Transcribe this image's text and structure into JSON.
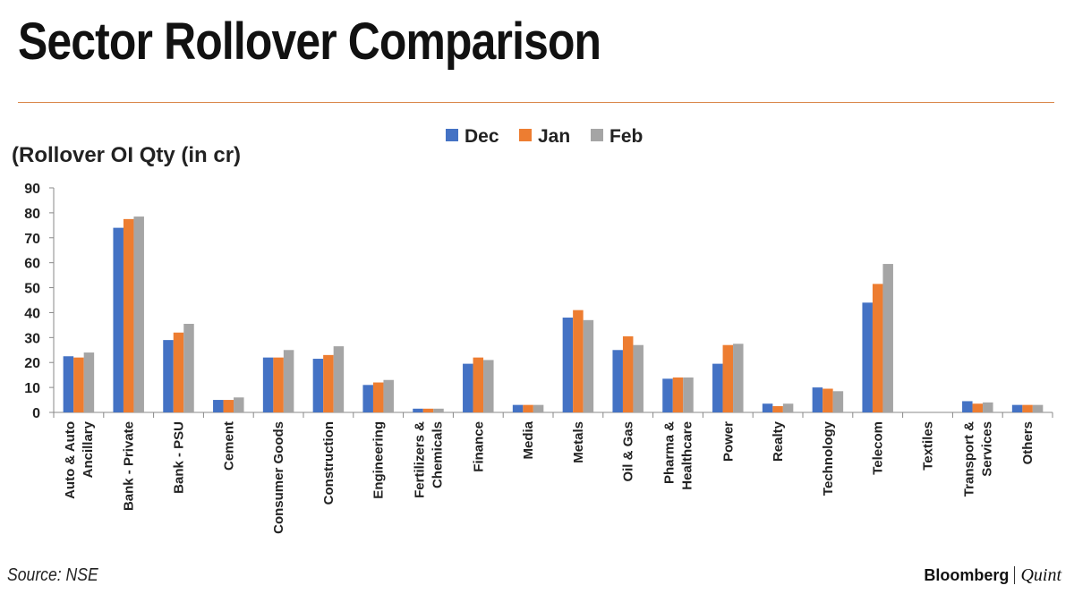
{
  "header": {
    "title": "Sector Rollover Comparison",
    "source": "Source: NSE",
    "brand_primary": "Bloomberg",
    "brand_secondary": "Quint"
  },
  "chart_data": {
    "type": "bar",
    "title": "Sector Rollover Comparison",
    "ylabel": "(Rollover OI Qty (in cr)",
    "xlabel": "",
    "ylim": [
      0,
      90
    ],
    "yticks": [
      0,
      10,
      20,
      30,
      40,
      50,
      60,
      70,
      80,
      90
    ],
    "legend_position": "top-center",
    "categories": [
      [
        "Auto & Auto",
        "Ancillary"
      ],
      [
        "Bank - Private"
      ],
      [
        "Bank - PSU"
      ],
      [
        "Cement"
      ],
      [
        "Consumer Goods"
      ],
      [
        "Construction"
      ],
      [
        "Engineering"
      ],
      [
        "Fertilizers &",
        "Chemicals"
      ],
      [
        "Finance"
      ],
      [
        "Media"
      ],
      [
        "Metals"
      ],
      [
        "Oil & Gas"
      ],
      [
        "Pharma &",
        "Healthcare"
      ],
      [
        "Power"
      ],
      [
        "Realty"
      ],
      [
        "Technology"
      ],
      [
        "Telecom"
      ],
      [
        "Textiles"
      ],
      [
        "Transport &",
        "Services"
      ],
      [
        "Others"
      ]
    ],
    "series": [
      {
        "name": "Dec",
        "color": "#4472c4",
        "values": [
          22.5,
          74,
          29,
          5,
          22,
          21.5,
          11,
          1.5,
          19.5,
          3,
          38,
          25,
          13.5,
          19.5,
          3.5,
          10,
          44,
          0,
          4.5,
          3
        ]
      },
      {
        "name": "Jan",
        "color": "#ed7d31",
        "values": [
          22,
          77.5,
          32,
          5,
          22,
          23,
          12,
          1.5,
          22,
          3,
          41,
          30.5,
          14,
          27,
          2.5,
          9.5,
          51.5,
          0,
          3.5,
          3
        ]
      },
      {
        "name": "Feb",
        "color": "#a5a5a5",
        "values": [
          24,
          78.5,
          35.5,
          6,
          25,
          26.5,
          13,
          1.5,
          21,
          3,
          37,
          27,
          14,
          27.5,
          3.5,
          8.5,
          59.5,
          0,
          4,
          3
        ]
      }
    ]
  }
}
